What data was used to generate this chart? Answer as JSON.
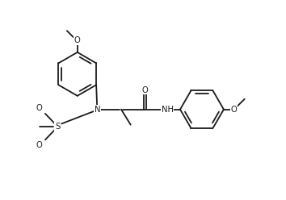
{
  "bg_color": "#ffffff",
  "line_color": "#1a1a1a",
  "line_width": 1.3,
  "font_size": 7.2,
  "fig_width": 3.54,
  "fig_height": 2.48,
  "dpi": 100,
  "xlim": [
    -0.5,
    10.5
  ],
  "ylim": [
    -0.5,
    7.5
  ]
}
